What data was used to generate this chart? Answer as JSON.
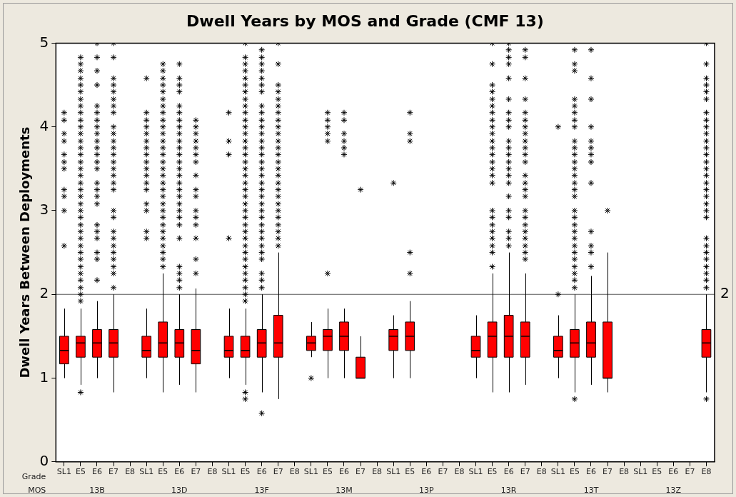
{
  "chart_data": {
    "type": "box",
    "title": "Dwell Years by MOS and Grade (CMF 13)",
    "ylabel": "Dwell Years Between Deployments",
    "color": "#ff0000",
    "marker": "star",
    "ylim": [
      0,
      5
    ],
    "yticks": [
      0,
      1,
      2,
      3,
      4,
      5
    ],
    "grid": false,
    "legend": false,
    "categories": [
      "SL1",
      "E5",
      "E6",
      "E7",
      "E8",
      "SL1",
      "E5",
      "E6",
      "E7",
      "E8",
      "SL1",
      "E5",
      "E6",
      "E7",
      "E8",
      "SL1",
      "E5",
      "E6",
      "E7",
      "E8",
      "SL1",
      "E5",
      "E6",
      "E7",
      "E8",
      "SL1",
      "E5",
      "E6",
      "E7",
      "E8",
      "SL1",
      "E5",
      "E6",
      "E7",
      "E8",
      "SL1",
      "E5",
      "E6",
      "E7",
      "E8"
    ],
    "boxes": [
      {
        "low": 1.0,
        "q1": 1.17,
        "median": 1.33,
        "q3": 1.5,
        "high": 1.83,
        "outliers": [
          2.58,
          3.0,
          3.17,
          3.25,
          3.5,
          3.58,
          3.67,
          3.83,
          3.92,
          4.08,
          4.17
        ]
      },
      {
        "low": 0.92,
        "q1": 1.25,
        "median": 1.42,
        "q3": 1.5,
        "high": 1.83,
        "outliers": [
          0.83,
          1.92,
          2.0,
          2.08,
          2.17,
          2.25,
          2.33,
          2.42,
          2.5,
          2.58,
          2.67,
          2.75,
          2.83,
          2.92,
          3.0,
          3.08,
          3.17,
          3.25,
          3.33,
          3.42,
          3.5,
          3.58,
          3.67,
          3.75,
          3.83,
          3.92,
          4.0,
          4.08,
          4.17,
          4.25,
          4.33,
          4.42,
          4.5,
          4.58,
          4.67,
          4.75,
          4.83
        ]
      },
      {
        "low": 1.0,
        "q1": 1.25,
        "median": 1.42,
        "q3": 1.58,
        "high": 1.92,
        "outliers": [
          2.17,
          2.42,
          2.5,
          2.67,
          2.75,
          2.83,
          3.08,
          3.17,
          3.25,
          3.33,
          3.5,
          3.58,
          3.67,
          3.75,
          3.83,
          3.92,
          4.0,
          4.08,
          4.17,
          4.25,
          4.5,
          4.67,
          4.83,
          5.0
        ]
      },
      {
        "low": 0.83,
        "q1": 1.25,
        "median": 1.42,
        "q3": 1.58,
        "high": 2.0,
        "outliers": [
          2.08,
          2.25,
          2.33,
          2.42,
          2.5,
          2.58,
          2.67,
          2.75,
          2.92,
          3.0,
          3.25,
          3.33,
          3.42,
          3.5,
          3.58,
          3.67,
          3.75,
          3.83,
          3.92,
          4.0,
          4.17,
          4.25,
          4.33,
          4.42,
          4.5,
          4.58,
          4.83,
          5.0
        ]
      },
      null,
      {
        "low": 1.0,
        "q1": 1.25,
        "median": 1.33,
        "q3": 1.5,
        "high": 1.83,
        "outliers": [
          2.67,
          2.75,
          3.0,
          3.08,
          3.25,
          3.33,
          3.42,
          3.5,
          3.58,
          3.67,
          3.75,
          3.83,
          3.92,
          4.0,
          4.08,
          4.17,
          4.58
        ]
      },
      {
        "low": 0.83,
        "q1": 1.25,
        "median": 1.42,
        "q3": 1.67,
        "high": 2.25,
        "outliers": [
          2.33,
          2.42,
          2.5,
          2.58,
          2.67,
          2.75,
          2.83,
          2.92,
          3.0,
          3.08,
          3.17,
          3.25,
          3.33,
          3.42,
          3.5,
          3.58,
          3.67,
          3.75,
          3.83,
          3.92,
          4.0,
          4.08,
          4.17,
          4.25,
          4.33,
          4.42,
          4.5,
          4.58,
          4.67,
          4.75
        ]
      },
      {
        "low": 0.92,
        "q1": 1.25,
        "median": 1.42,
        "q3": 1.58,
        "high": 2.0,
        "outliers": [
          2.08,
          2.17,
          2.25,
          2.33,
          2.67,
          2.83,
          2.92,
          3.0,
          3.08,
          3.17,
          3.25,
          3.33,
          3.42,
          3.5,
          3.58,
          3.67,
          3.75,
          3.83,
          3.92,
          4.0,
          4.08,
          4.17,
          4.25,
          4.42,
          4.5,
          4.58,
          4.75
        ]
      },
      {
        "low": 0.83,
        "q1": 1.17,
        "median": 1.33,
        "q3": 1.58,
        "high": 2.07,
        "outliers": [
          2.25,
          2.42,
          2.67,
          2.83,
          2.92,
          3.0,
          3.17,
          3.25,
          3.42,
          3.58,
          3.67,
          3.75,
          3.83,
          3.92,
          4.0,
          4.08
        ]
      },
      null,
      {
        "low": 1.0,
        "q1": 1.25,
        "median": 1.33,
        "q3": 1.5,
        "high": 1.83,
        "outliers": [
          2.67,
          3.67,
          3.83,
          4.17
        ]
      },
      {
        "low": 0.92,
        "q1": 1.25,
        "median": 1.33,
        "q3": 1.5,
        "high": 1.83,
        "outliers": [
          0.75,
          0.83,
          1.92,
          2.0,
          2.08,
          2.17,
          2.25,
          2.33,
          2.42,
          2.5,
          2.58,
          2.67,
          2.75,
          2.83,
          2.92,
          3.0,
          3.08,
          3.17,
          3.25,
          3.33,
          3.42,
          3.5,
          3.58,
          3.67,
          3.75,
          3.83,
          3.92,
          4.0,
          4.08,
          4.17,
          4.25,
          4.33,
          4.42,
          4.5,
          4.58,
          4.67,
          4.75,
          4.83,
          5.0
        ]
      },
      {
        "low": 0.83,
        "q1": 1.25,
        "median": 1.42,
        "q3": 1.58,
        "high": 2.0,
        "outliers": [
          0.58,
          2.08,
          2.17,
          2.25,
          2.42,
          2.5,
          2.58,
          2.67,
          2.75,
          2.83,
          2.92,
          3.0,
          3.08,
          3.17,
          3.25,
          3.33,
          3.42,
          3.5,
          3.58,
          3.67,
          3.75,
          3.83,
          3.92,
          4.0,
          4.08,
          4.17,
          4.25,
          4.42,
          4.5,
          4.58,
          4.67,
          4.75,
          4.83,
          4.92
        ]
      },
      {
        "low": 0.75,
        "q1": 1.25,
        "median": 1.42,
        "q3": 1.75,
        "high": 2.5,
        "outliers": [
          2.58,
          2.67,
          2.75,
          2.83,
          2.92,
          3.0,
          3.08,
          3.17,
          3.25,
          3.33,
          3.42,
          3.5,
          3.58,
          3.67,
          3.75,
          3.83,
          3.92,
          4.0,
          4.08,
          4.17,
          4.25,
          4.33,
          4.42,
          4.5,
          4.75,
          5.0
        ]
      },
      null,
      {
        "low": 1.25,
        "q1": 1.33,
        "median": 1.42,
        "q3": 1.5,
        "high": 1.67,
        "outliers": [
          1.0
        ]
      },
      {
        "low": 1.0,
        "q1": 1.33,
        "median": 1.5,
        "q3": 1.58,
        "high": 1.83,
        "outliers": [
          2.25,
          3.83,
          3.92,
          4.0,
          4.08,
          4.17
        ]
      },
      {
        "low": 1.0,
        "q1": 1.33,
        "median": 1.5,
        "q3": 1.67,
        "high": 1.83,
        "outliers": [
          3.67,
          3.75,
          3.83,
          3.92,
          4.08,
          4.17
        ]
      },
      {
        "low": 1.0,
        "q1": 1.0,
        "median": 1.0,
        "q3": 1.25,
        "high": 1.5,
        "outliers": [
          3.25
        ]
      },
      null,
      {
        "low": 1.0,
        "q1": 1.33,
        "median": 1.5,
        "q3": 1.58,
        "high": 1.75,
        "outliers": [
          3.33
        ]
      },
      {
        "low": 1.0,
        "q1": 1.33,
        "median": 1.5,
        "q3": 1.67,
        "high": 1.92,
        "outliers": [
          2.25,
          2.5,
          3.83,
          3.92,
          4.17
        ]
      },
      null,
      null,
      null,
      {
        "low": 1.0,
        "q1": 1.25,
        "median": 1.33,
        "q3": 1.5,
        "high": 1.75
      },
      {
        "low": 0.83,
        "q1": 1.25,
        "median": 1.5,
        "q3": 1.67,
        "high": 2.25,
        "outliers": [
          2.33,
          2.5,
          2.58,
          2.67,
          2.75,
          2.83,
          2.92,
          3.0,
          3.33,
          3.42,
          3.5,
          3.58,
          3.67,
          3.75,
          3.83,
          3.92,
          4.0,
          4.08,
          4.17,
          4.25,
          4.33,
          4.42,
          4.5,
          4.75,
          5.0
        ]
      },
      {
        "low": 0.83,
        "q1": 1.25,
        "median": 1.5,
        "q3": 1.75,
        "high": 2.5,
        "outliers": [
          2.58,
          2.67,
          2.75,
          2.92,
          3.0,
          3.17,
          3.33,
          3.42,
          3.5,
          3.58,
          3.67,
          3.75,
          3.83,
          4.0,
          4.08,
          4.17,
          4.33,
          4.58,
          4.75,
          4.83,
          4.92,
          5.0
        ]
      },
      {
        "low": 0.92,
        "q1": 1.25,
        "median": 1.5,
        "q3": 1.67,
        "high": 2.25,
        "outliers": [
          2.42,
          2.5,
          2.58,
          2.67,
          2.75,
          2.83,
          2.92,
          3.0,
          3.17,
          3.25,
          3.33,
          3.42,
          3.58,
          3.67,
          3.75,
          3.83,
          3.92,
          4.0,
          4.08,
          4.17,
          4.33,
          4.58,
          4.83,
          4.92
        ]
      },
      null,
      {
        "low": 1.0,
        "q1": 1.25,
        "median": 1.33,
        "q3": 1.5,
        "high": 1.75,
        "outliers": [
          2.0,
          4.0
        ]
      },
      {
        "low": 0.83,
        "q1": 1.25,
        "median": 1.42,
        "q3": 1.58,
        "high": 2.0,
        "outliers": [
          0.75,
          2.08,
          2.17,
          2.25,
          2.33,
          2.42,
          2.5,
          2.58,
          2.67,
          2.75,
          2.83,
          2.92,
          3.0,
          3.17,
          3.25,
          3.33,
          3.42,
          3.5,
          3.58,
          3.67,
          3.75,
          3.83,
          4.0,
          4.08,
          4.17,
          4.25,
          4.33,
          4.67,
          4.75,
          4.92
        ]
      },
      {
        "low": 0.92,
        "q1": 1.25,
        "median": 1.42,
        "q3": 1.67,
        "high": 2.22,
        "outliers": [
          2.33,
          2.5,
          2.58,
          2.75,
          3.33,
          3.58,
          3.67,
          3.75,
          3.83,
          4.0,
          4.33,
          4.58,
          4.92
        ]
      },
      {
        "low": 0.83,
        "q1": 1.0,
        "median": 1.0,
        "q3": 1.67,
        "high": 2.5,
        "outliers": [
          3.0
        ]
      },
      null,
      null,
      null,
      null,
      null,
      {
        "low": 0.83,
        "q1": 1.25,
        "median": 1.42,
        "q3": 1.58,
        "high": 2.0,
        "outliers": [
          0.75,
          2.08,
          2.17,
          2.25,
          2.33,
          2.42,
          2.5,
          2.58,
          2.67,
          2.92,
          3.0,
          3.08,
          3.17,
          3.25,
          3.33,
          3.42,
          3.5,
          3.58,
          3.67,
          3.75,
          3.83,
          3.92,
          4.0,
          4.08,
          4.17,
          4.33,
          4.42,
          4.5,
          4.58,
          4.75,
          5.0
        ]
      }
    ],
    "ref_lines": [
      {
        "axis": "y",
        "value": 2,
        "label": "2",
        "color": "#555555"
      }
    ],
    "annotations": [
      "Grade",
      "MOS",
      "13B",
      "13D",
      "13F",
      "13M",
      "13P",
      "13R",
      "13T",
      "13Z"
    ]
  }
}
